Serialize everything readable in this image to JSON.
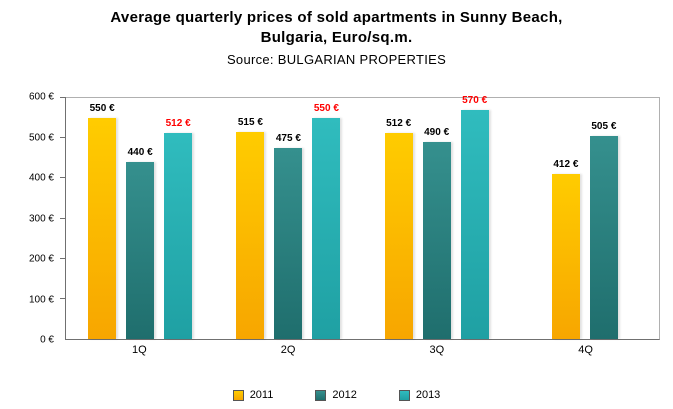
{
  "title": {
    "line1": "Average quarterly prices of sold apartments in Sunny Beach,",
    "line2": "Bulgaria, Euro/sq.m.",
    "source": "Source: BULGARIAN PROPERTIES"
  },
  "chart_data": {
    "type": "bar",
    "categories": [
      "1Q",
      "2Q",
      "3Q",
      "4Q"
    ],
    "series": [
      {
        "name": "2011",
        "values": [
          550,
          515,
          512,
          412
        ],
        "color": "#FFCC00",
        "color2": "#F7A600",
        "label_color": "#000000"
      },
      {
        "name": "2012",
        "values": [
          440,
          475,
          490,
          505
        ],
        "color": "#35908E",
        "color2": "#1F6E6D",
        "label_color": "#000000"
      },
      {
        "name": "2013",
        "values": [
          512,
          550,
          570,
          null
        ],
        "color": "#30BCBE",
        "color2": "#1FA0A3",
        "label_color": "#FF0000"
      }
    ],
    "ylim": [
      0,
      600
    ],
    "ytick_step": 100,
    "ytick_labels": [
      "0 €",
      "100 €",
      "200 €",
      "300 €",
      "400 €",
      "500 €",
      "600 €"
    ],
    "label_suffix": " €",
    "legend_position": "bottom",
    "grid": false
  }
}
